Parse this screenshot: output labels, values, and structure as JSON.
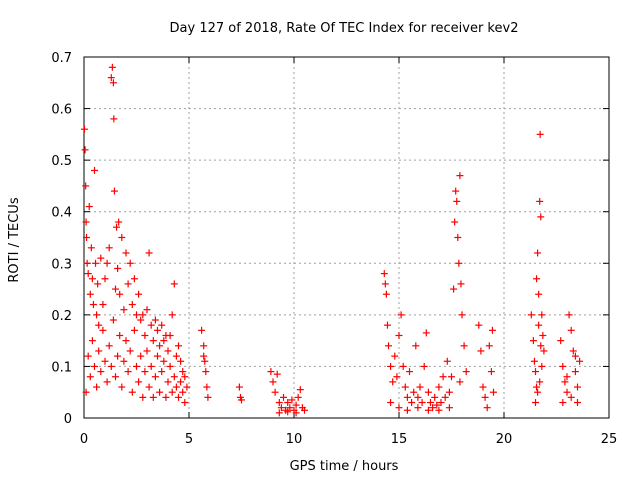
{
  "chart_data": {
    "type": "scatter",
    "title": "Day 127 of 2018, Rate Of TEC Index for receiver kev2",
    "xlabel": "GPS time / hours",
    "ylabel": "ROTI / TECUs",
    "xlim": [
      0,
      25
    ],
    "ylim": [
      0,
      0.7
    ],
    "xticks": [
      "0",
      "5",
      "10",
      "15",
      "20",
      "25"
    ],
    "yticks": [
      "0",
      "0.1",
      "0.2",
      "0.3",
      "0.4",
      "0.5",
      "0.6",
      "0.7"
    ],
    "grid": true,
    "marker": "+",
    "color": "#ff0000",
    "series": [
      {
        "points": [
          [
            0.02,
            0.56
          ],
          [
            0.05,
            0.52
          ],
          [
            0.08,
            0.45
          ],
          [
            0.1,
            0.38
          ],
          [
            0.12,
            0.35
          ],
          [
            0.15,
            0.3
          ],
          [
            0.2,
            0.28
          ],
          [
            0.25,
            0.41
          ],
          [
            0.3,
            0.24
          ],
          [
            0.35,
            0.33
          ],
          [
            0.4,
            0.27
          ],
          [
            0.45,
            0.22
          ],
          [
            0.5,
            0.48
          ],
          [
            0.55,
            0.3
          ],
          [
            0.6,
            0.2
          ],
          [
            0.65,
            0.26
          ],
          [
            0.7,
            0.18
          ],
          [
            0.8,
            0.31
          ],
          [
            0.9,
            0.22
          ],
          [
            1.0,
            0.27
          ],
          [
            1.1,
            0.3
          ],
          [
            1.2,
            0.33
          ],
          [
            1.3,
            0.66
          ],
          [
            1.35,
            0.68
          ],
          [
            1.4,
            0.65
          ],
          [
            1.42,
            0.58
          ],
          [
            1.45,
            0.44
          ],
          [
            1.5,
            0.25
          ],
          [
            1.55,
            0.37
          ],
          [
            1.6,
            0.29
          ],
          [
            1.65,
            0.38
          ],
          [
            1.7,
            0.24
          ],
          [
            1.8,
            0.35
          ],
          [
            1.9,
            0.21
          ],
          [
            2.0,
            0.32
          ],
          [
            2.1,
            0.26
          ],
          [
            2.2,
            0.3
          ],
          [
            2.3,
            0.22
          ],
          [
            2.4,
            0.27
          ],
          [
            2.5,
            0.2
          ],
          [
            2.6,
            0.24
          ],
          [
            2.7,
            0.19
          ],
          [
            2.8,
            0.2
          ],
          [
            2.9,
            0.16
          ],
          [
            3.0,
            0.21
          ],
          [
            3.1,
            0.32
          ],
          [
            3.2,
            0.18
          ],
          [
            3.3,
            0.15
          ],
          [
            3.4,
            0.19
          ],
          [
            3.5,
            0.17
          ],
          [
            3.6,
            0.14
          ],
          [
            3.7,
            0.18
          ],
          [
            3.8,
            0.15
          ],
          [
            3.9,
            0.16
          ],
          [
            4.0,
            0.13
          ],
          [
            4.1,
            0.16
          ],
          [
            4.2,
            0.2
          ],
          [
            4.3,
            0.26
          ],
          [
            4.4,
            0.12
          ],
          [
            4.5,
            0.14
          ],
          [
            4.6,
            0.11
          ],
          [
            4.7,
            0.09
          ],
          [
            4.8,
            0.08
          ],
          [
            4.9,
            0.06
          ],
          [
            0.1,
            0.05
          ],
          [
            0.2,
            0.12
          ],
          [
            0.3,
            0.08
          ],
          [
            0.4,
            0.15
          ],
          [
            0.5,
            0.1
          ],
          [
            0.6,
            0.06
          ],
          [
            0.7,
            0.13
          ],
          [
            0.8,
            0.09
          ],
          [
            0.9,
            0.17
          ],
          [
            1.0,
            0.11
          ],
          [
            1.1,
            0.07
          ],
          [
            1.2,
            0.14
          ],
          [
            1.3,
            0.1
          ],
          [
            1.4,
            0.19
          ],
          [
            1.5,
            0.08
          ],
          [
            1.6,
            0.12
          ],
          [
            1.7,
            0.16
          ],
          [
            1.8,
            0.06
          ],
          [
            1.9,
            0.11
          ],
          [
            2.0,
            0.15
          ],
          [
            2.1,
            0.09
          ],
          [
            2.2,
            0.13
          ],
          [
            2.3,
            0.05
          ],
          [
            2.4,
            0.17
          ],
          [
            2.5,
            0.1
          ],
          [
            2.6,
            0.07
          ],
          [
            2.7,
            0.12
          ],
          [
            2.8,
            0.04
          ],
          [
            2.9,
            0.09
          ],
          [
            3.0,
            0.13
          ],
          [
            3.1,
            0.06
          ],
          [
            3.2,
            0.1
          ],
          [
            3.3,
            0.04
          ],
          [
            3.4,
            0.08
          ],
          [
            3.5,
            0.12
          ],
          [
            3.6,
            0.05
          ],
          [
            3.7,
            0.09
          ],
          [
            3.8,
            0.11
          ],
          [
            3.9,
            0.04
          ],
          [
            4.0,
            0.07
          ],
          [
            4.1,
            0.1
          ],
          [
            4.2,
            0.05
          ],
          [
            4.3,
            0.08
          ],
          [
            4.4,
            0.06
          ],
          [
            4.5,
            0.04
          ],
          [
            4.6,
            0.07
          ],
          [
            4.7,
            0.05
          ],
          [
            4.8,
            0.03
          ],
          [
            5.6,
            0.17
          ],
          [
            5.7,
            0.14
          ],
          [
            5.75,
            0.11
          ],
          [
            5.8,
            0.09
          ],
          [
            5.85,
            0.06
          ],
          [
            5.9,
            0.04
          ],
          [
            5.7,
            0.12
          ],
          [
            7.4,
            0.06
          ],
          [
            7.45,
            0.04
          ],
          [
            7.5,
            0.035
          ],
          [
            8.9,
            0.09
          ],
          [
            9.0,
            0.07
          ],
          [
            9.1,
            0.05
          ],
          [
            9.2,
            0.085
          ],
          [
            9.3,
            0.03
          ],
          [
            9.4,
            0.02
          ],
          [
            9.5,
            0.04
          ],
          [
            9.6,
            0.015
          ],
          [
            9.7,
            0.03
          ],
          [
            9.8,
            0.02
          ],
          [
            9.9,
            0.035
          ],
          [
            10.0,
            0.015
          ],
          [
            10.1,
            0.025
          ],
          [
            10.2,
            0.04
          ],
          [
            10.3,
            0.055
          ],
          [
            10.4,
            0.02
          ],
          [
            10.5,
            0.015
          ],
          [
            9.3,
            0.01
          ],
          [
            9.7,
            0.012
          ],
          [
            10.1,
            0.01
          ],
          [
            14.3,
            0.28
          ],
          [
            14.35,
            0.26
          ],
          [
            14.4,
            0.24
          ],
          [
            14.45,
            0.18
          ],
          [
            14.5,
            0.14
          ],
          [
            14.6,
            0.1
          ],
          [
            14.7,
            0.07
          ],
          [
            14.8,
            0.12
          ],
          [
            14.9,
            0.08
          ],
          [
            15.0,
            0.16
          ],
          [
            15.1,
            0.2
          ],
          [
            15.2,
            0.1
          ],
          [
            15.3,
            0.06
          ],
          [
            15.4,
            0.04
          ],
          [
            15.5,
            0.09
          ],
          [
            15.6,
            0.03
          ],
          [
            15.7,
            0.05
          ],
          [
            15.8,
            0.14
          ],
          [
            15.9,
            0.04
          ],
          [
            16.0,
            0.06
          ],
          [
            16.1,
            0.03
          ],
          [
            16.2,
            0.1
          ],
          [
            16.3,
            0.165
          ],
          [
            16.4,
            0.05
          ],
          [
            16.5,
            0.03
          ],
          [
            16.6,
            0.02
          ],
          [
            16.7,
            0.04
          ],
          [
            16.8,
            0.025
          ],
          [
            16.9,
            0.06
          ],
          [
            17.0,
            0.03
          ],
          [
            17.1,
            0.08
          ],
          [
            17.2,
            0.04
          ],
          [
            17.3,
            0.11
          ],
          [
            17.4,
            0.05
          ],
          [
            17.5,
            0.08
          ],
          [
            17.6,
            0.25
          ],
          [
            17.65,
            0.38
          ],
          [
            17.7,
            0.44
          ],
          [
            17.75,
            0.42
          ],
          [
            17.8,
            0.35
          ],
          [
            17.85,
            0.3
          ],
          [
            17.9,
            0.47
          ],
          [
            17.95,
            0.26
          ],
          [
            18.0,
            0.2
          ],
          [
            18.1,
            0.14
          ],
          [
            18.2,
            0.09
          ],
          [
            14.6,
            0.03
          ],
          [
            15.0,
            0.02
          ],
          [
            15.4,
            0.015
          ],
          [
            15.9,
            0.02
          ],
          [
            16.4,
            0.015
          ],
          [
            16.9,
            0.015
          ],
          [
            17.4,
            0.02
          ],
          [
            17.9,
            0.07
          ],
          [
            18.8,
            0.18
          ],
          [
            18.9,
            0.13
          ],
          [
            19.0,
            0.06
          ],
          [
            19.1,
            0.04
          ],
          [
            19.2,
            0.02
          ],
          [
            19.3,
            0.14
          ],
          [
            19.4,
            0.09
          ],
          [
            19.45,
            0.17
          ],
          [
            19.5,
            0.05
          ],
          [
            21.3,
            0.2
          ],
          [
            21.4,
            0.15
          ],
          [
            21.45,
            0.11
          ],
          [
            21.5,
            0.09
          ],
          [
            21.55,
            0.27
          ],
          [
            21.6,
            0.32
          ],
          [
            21.65,
            0.24
          ],
          [
            21.7,
            0.42
          ],
          [
            21.72,
            0.55
          ],
          [
            21.75,
            0.39
          ],
          [
            21.8,
            0.2
          ],
          [
            21.85,
            0.16
          ],
          [
            21.9,
            0.13
          ],
          [
            21.5,
            0.03
          ],
          [
            21.6,
            0.05
          ],
          [
            21.7,
            0.07
          ],
          [
            21.8,
            0.1
          ],
          [
            21.65,
            0.18
          ],
          [
            21.55,
            0.06
          ],
          [
            21.75,
            0.14
          ],
          [
            22.7,
            0.15
          ],
          [
            22.8,
            0.1
          ],
          [
            22.9,
            0.07
          ],
          [
            23.0,
            0.05
          ],
          [
            23.1,
            0.2
          ],
          [
            23.2,
            0.17
          ],
          [
            23.3,
            0.13
          ],
          [
            23.4,
            0.09
          ],
          [
            23.5,
            0.06
          ],
          [
            23.6,
            0.11
          ],
          [
            22.8,
            0.03
          ],
          [
            23.0,
            0.08
          ],
          [
            23.2,
            0.04
          ],
          [
            23.4,
            0.12
          ],
          [
            23.5,
            0.03
          ]
        ]
      }
    ]
  }
}
